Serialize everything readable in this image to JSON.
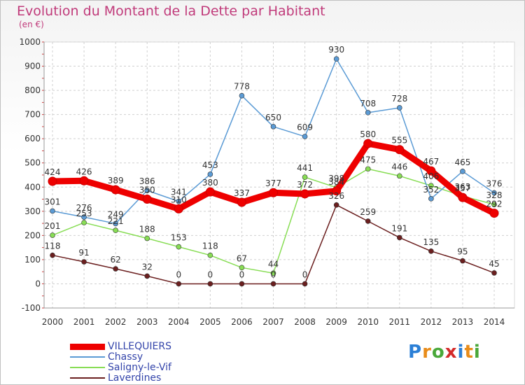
{
  "header": {
    "title": "Evolution du Montant de la Dette par Habitant",
    "unit": "(en €)"
  },
  "logo": {
    "text": "Proxiti",
    "colors": [
      "#2b7fd6",
      "#e88c1a",
      "#4aa83a",
      "#d42a2a",
      "#2b7fd6",
      "#e88c1a",
      "#4aa83a"
    ]
  },
  "chart_data": {
    "type": "line",
    "title": "Evolution du Montant de la Dette par Habitant",
    "ylabel": "(en €)",
    "xlabel": "",
    "ylim": [
      -100,
      1000
    ],
    "yticks": [
      -100,
      0,
      100,
      200,
      300,
      400,
      500,
      600,
      700,
      800,
      900,
      1000
    ],
    "grid": true,
    "legend_position": "bottom-left",
    "x": [
      "2000",
      "2001",
      "2002",
      "2003",
      "2004",
      "2005",
      "2006",
      "2007",
      "2008",
      "2009",
      "2010",
      "2011",
      "2012",
      "2013",
      "2014"
    ],
    "series": [
      {
        "name": "VILLEQUIERS",
        "color": "#ee0000",
        "values": [
          424,
          426,
          389,
          350,
          310,
          380,
          337,
          377,
          372,
          384,
          580,
          555,
          467,
          357,
          292
        ]
      },
      {
        "name": "Chassy",
        "color": "#5b9bd5",
        "values": [
          301,
          276,
          249,
          386,
          341,
          453,
          778,
          650,
          609,
          930,
          708,
          728,
          352,
          465,
          376
        ]
      },
      {
        "name": "Saligny-le-Vif",
        "color": "#88dd55",
        "values": [
          201,
          253,
          221,
          188,
          153,
          118,
          67,
          44,
          441,
          398,
          475,
          446,
          406,
          363,
          328
        ]
      },
      {
        "name": "Laverdines",
        "color": "#6b1f1f",
        "values": [
          118,
          91,
          62,
          32,
          0,
          0,
          0,
          0,
          0,
          326,
          259,
          191,
          135,
          95,
          45
        ]
      }
    ]
  }
}
